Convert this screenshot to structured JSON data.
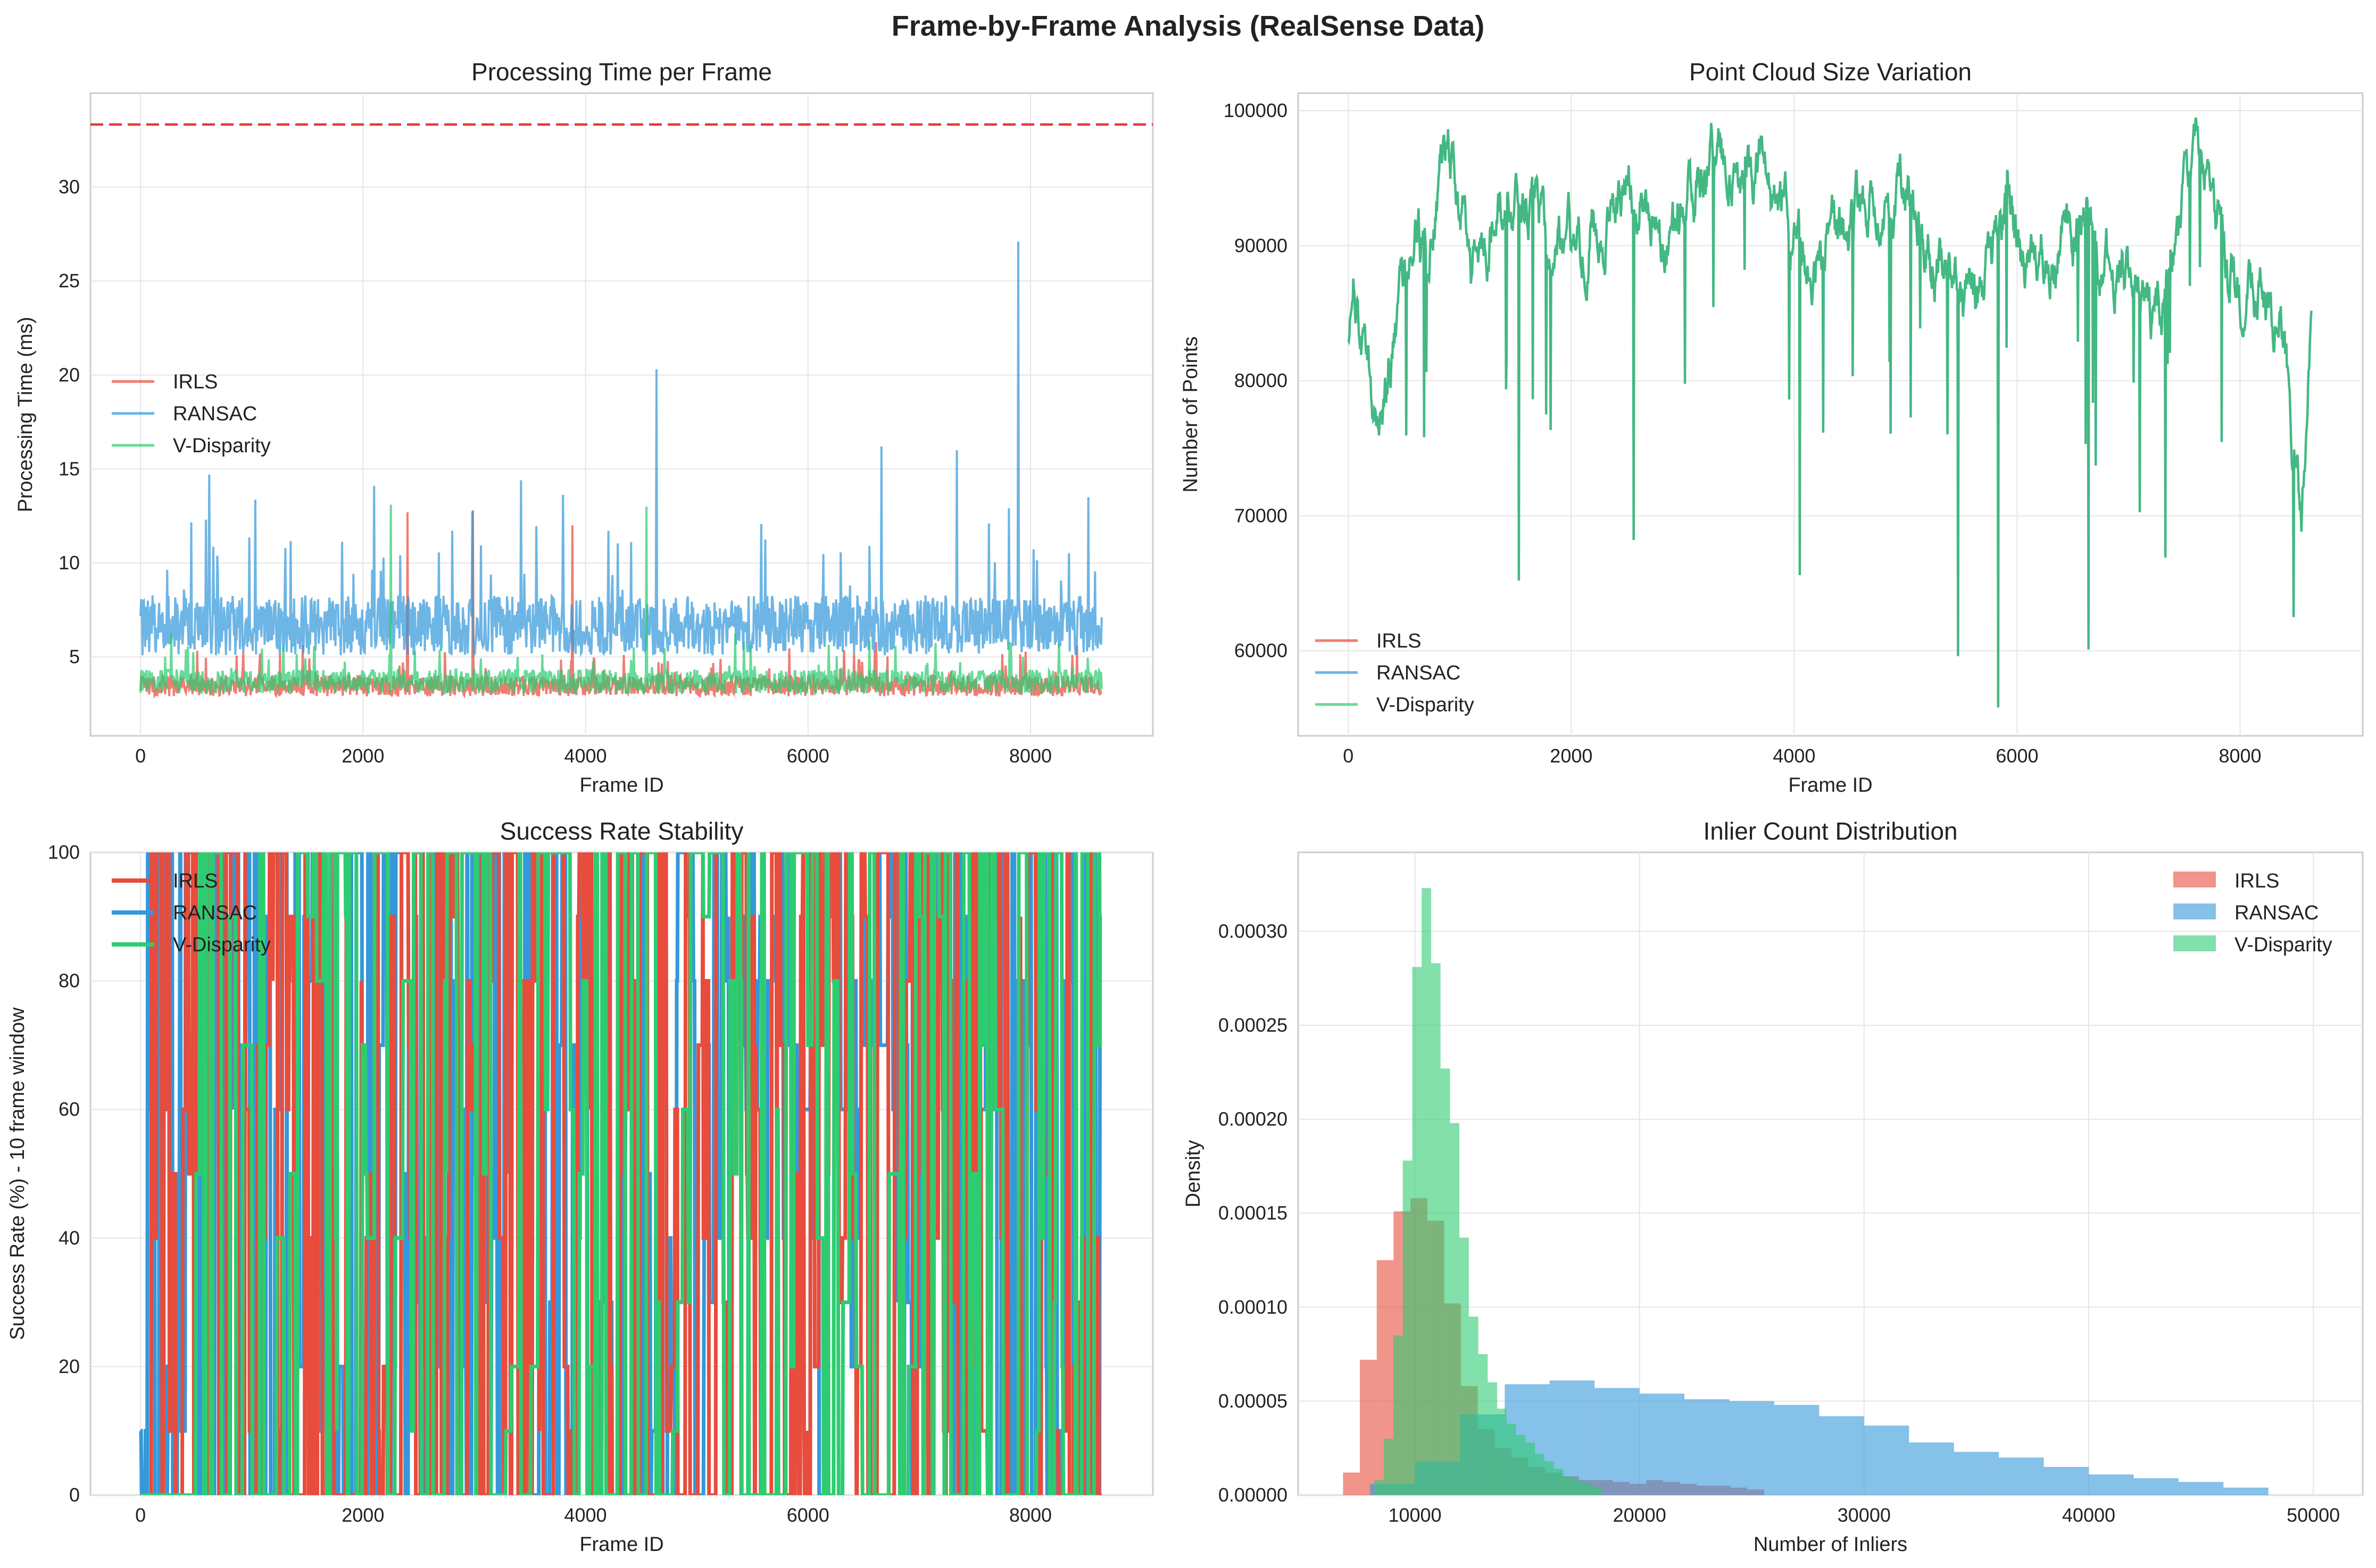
{
  "title": "Frame-by-Frame Analysis (RealSense Data)",
  "colors": {
    "irls": "#e74c3c",
    "ransac": "#3498db",
    "vdisp": "#2ecc71",
    "realtime": "#e53935"
  },
  "chart_data": [
    {
      "type": "line",
      "title": "Processing Time per Frame",
      "xlabel": "Frame ID",
      "ylabel": "Processing Time (ms)",
      "xlim": [
        -450,
        9100
      ],
      "ylim": [
        0.8,
        35.0
      ],
      "xticks": [
        0,
        2000,
        4000,
        6000,
        8000
      ],
      "yticks": [
        5,
        10,
        15,
        20,
        25,
        30
      ],
      "n_frames": 8640,
      "reference_line": {
        "y": 33.33,
        "style": "dashed"
      },
      "legend_position": "center-left",
      "series": [
        {
          "name": "IRLS",
          "baseline": 3.3,
          "noise": 0.7,
          "spikes": [
            [
              2400,
              12.7
            ],
            [
              2990,
              12.8
            ],
            [
              3880,
              12.0
            ]
          ]
        },
        {
          "name": "RANSAC",
          "baseline": 6.2,
          "noise": 2.0,
          "spikes": [
            [
              615,
              14.7
            ],
            [
              2100,
              14.1
            ],
            [
              3420,
              14.4
            ],
            [
              4640,
              20.3
            ],
            [
              6660,
              16.2
            ],
            [
              7340,
              16.0
            ],
            [
              7890,
              27.1
            ],
            [
              8520,
              13.5
            ]
          ]
        },
        {
          "name": "V-Disparity",
          "baseline": 3.5,
          "noise": 0.8,
          "spikes": [
            [
              2250,
              13.1
            ],
            [
              4550,
              13.0
            ]
          ]
        }
      ]
    },
    {
      "type": "line",
      "title": "Point Cloud Size Variation",
      "xlabel": "Frame ID",
      "ylabel": "Number of Points",
      "xlim": [
        -450,
        9100
      ],
      "ylim": [
        53700,
        101300
      ],
      "xticks": [
        0,
        2000,
        4000,
        6000,
        8000
      ],
      "yticks": [
        60000,
        70000,
        80000,
        90000,
        100000
      ],
      "legend_position": "lower-left",
      "series": [
        {
          "name": "IRLS",
          "drawn": false
        },
        {
          "name": "RANSAC",
          "drawn": false
        },
        {
          "name": "V-Disparity",
          "drawn": true
        }
      ],
      "profile": [
        [
          0,
          82000
        ],
        [
          50,
          86500
        ],
        [
          150,
          80000
        ],
        [
          300,
          75000
        ],
        [
          400,
          84000
        ],
        [
          600,
          89000
        ],
        [
          800,
          93000
        ],
        [
          900,
          97000
        ],
        [
          1100,
          88000
        ],
        [
          1300,
          92000
        ],
        [
          1600,
          93000
        ],
        [
          1800,
          91000
        ],
        [
          2000,
          90000
        ],
        [
          2300,
          92000
        ],
        [
          2600,
          95000
        ],
        [
          2800,
          90000
        ],
        [
          3000,
          92000
        ],
        [
          3300,
          97000
        ],
        [
          3500,
          94000
        ],
        [
          3700,
          96000
        ],
        [
          3900,
          92000
        ],
        [
          4100,
          88000
        ],
        [
          4300,
          90000
        ],
        [
          4500,
          92000
        ],
        [
          4700,
          95000
        ],
        [
          4900,
          93000
        ],
        [
          5100,
          92000
        ],
        [
          5300,
          89000
        ],
        [
          5500,
          86000
        ],
        [
          5700,
          87000
        ],
        [
          5900,
          93000
        ],
        [
          6100,
          88000
        ],
        [
          6300,
          89000
        ],
        [
          6600,
          92000
        ],
        [
          6800,
          89000
        ],
        [
          7000,
          87000
        ],
        [
          7200,
          84000
        ],
        [
          7400,
          89000
        ],
        [
          7600,
          96000
        ],
        [
          7800,
          92000
        ],
        [
          8000,
          86000
        ],
        [
          8200,
          87000
        ],
        [
          8400,
          84000
        ],
        [
          8550,
          70000
        ],
        [
          8640,
          87000
        ]
      ],
      "dips": [
        [
          1530,
          65200
        ],
        [
          2560,
          68200
        ],
        [
          4050,
          65600
        ],
        [
          5470,
          59600
        ],
        [
          5830,
          55800
        ],
        [
          6640,
          60100
        ],
        [
          7330,
          66900
        ],
        [
          8480,
          62500
        ]
      ]
    },
    {
      "type": "line",
      "title": "Success Rate Stability",
      "xlabel": "Frame ID",
      "ylabel": "Success Rate (%) - 10 frame window",
      "xlim": [
        -450,
        9100
      ],
      "ylim": [
        0,
        100
      ],
      "xticks": [
        0,
        2000,
        4000,
        6000,
        8000
      ],
      "yticks": [
        0,
        20,
        40,
        60,
        80,
        100
      ],
      "levels": [
        0,
        10,
        20,
        30,
        40,
        50,
        60,
        70,
        80,
        90,
        100
      ],
      "legend_position": "upper-left",
      "series": [
        {
          "name": "IRLS",
          "active_from": 100
        },
        {
          "name": "RANSAC",
          "active_from": 0
        },
        {
          "name": "V-Disparity",
          "active_from": 500
        }
      ]
    },
    {
      "type": "histogram",
      "title": "Inlier Count Distribution",
      "xlabel": "Number of Inliers",
      "ylabel": "Density",
      "xlim": [
        4800,
        52200
      ],
      "ylim": [
        0,
        0.000342
      ],
      "xticks": [
        10000,
        20000,
        30000,
        40000,
        50000
      ],
      "yticks": [
        0,
        5e-05,
        0.0001,
        0.00015,
        0.0002,
        0.00025,
        0.0003
      ],
      "ytick_labels": [
        "0.00000",
        "0.00005",
        "0.00010",
        "0.00015",
        "0.00020",
        "0.00025",
        "0.00030"
      ],
      "legend_position": "upper-right",
      "series": [
        {
          "name": "IRLS",
          "bin_start": 6800,
          "bin_width": 750,
          "values": [
            1.2e-05,
            7.2e-05,
            0.000125,
            0.000151,
            0.000158,
            0.000146,
            0.000102,
            5.8e-05,
            3.5e-05,
            2.5e-05,
            2e-05,
            1.5e-05,
            1.2e-05,
            1e-05,
            8e-06,
            8e-06,
            7e-06,
            6e-06,
            8e-06,
            7e-06,
            6e-06,
            5e-06,
            5e-06,
            4e-06,
            3e-06
          ]
        },
        {
          "name": "RANSAC",
          "bin_start": 8000,
          "bin_width": 2000,
          "values": [
            6e-06,
            1.8e-05,
            4.3e-05,
            5.9e-05,
            6.1e-05,
            5.7e-05,
            5.4e-05,
            5.1e-05,
            5e-05,
            4.8e-05,
            4.2e-05,
            3.7e-05,
            2.8e-05,
            2.3e-05,
            2e-05,
            1.5e-05,
            1.1e-05,
            9e-06,
            7e-06,
            4e-06
          ]
        },
        {
          "name": "V-Disparity",
          "bin_start": 8200,
          "bin_width": 420,
          "values": [
            8e-06,
            3e-05,
            8.5e-05,
            0.000178,
            0.000281,
            0.000323,
            0.000283,
            0.000227,
            0.000198,
            0.000137,
            9.5e-05,
            7.5e-05,
            6e-05,
            4.6e-05,
            3.8e-05,
            3.2e-05,
            2.8e-05,
            2.2e-05,
            1.8e-05,
            1.4e-05,
            1e-05,
            8e-06,
            6e-06,
            4e-06
          ]
        }
      ]
    }
  ]
}
